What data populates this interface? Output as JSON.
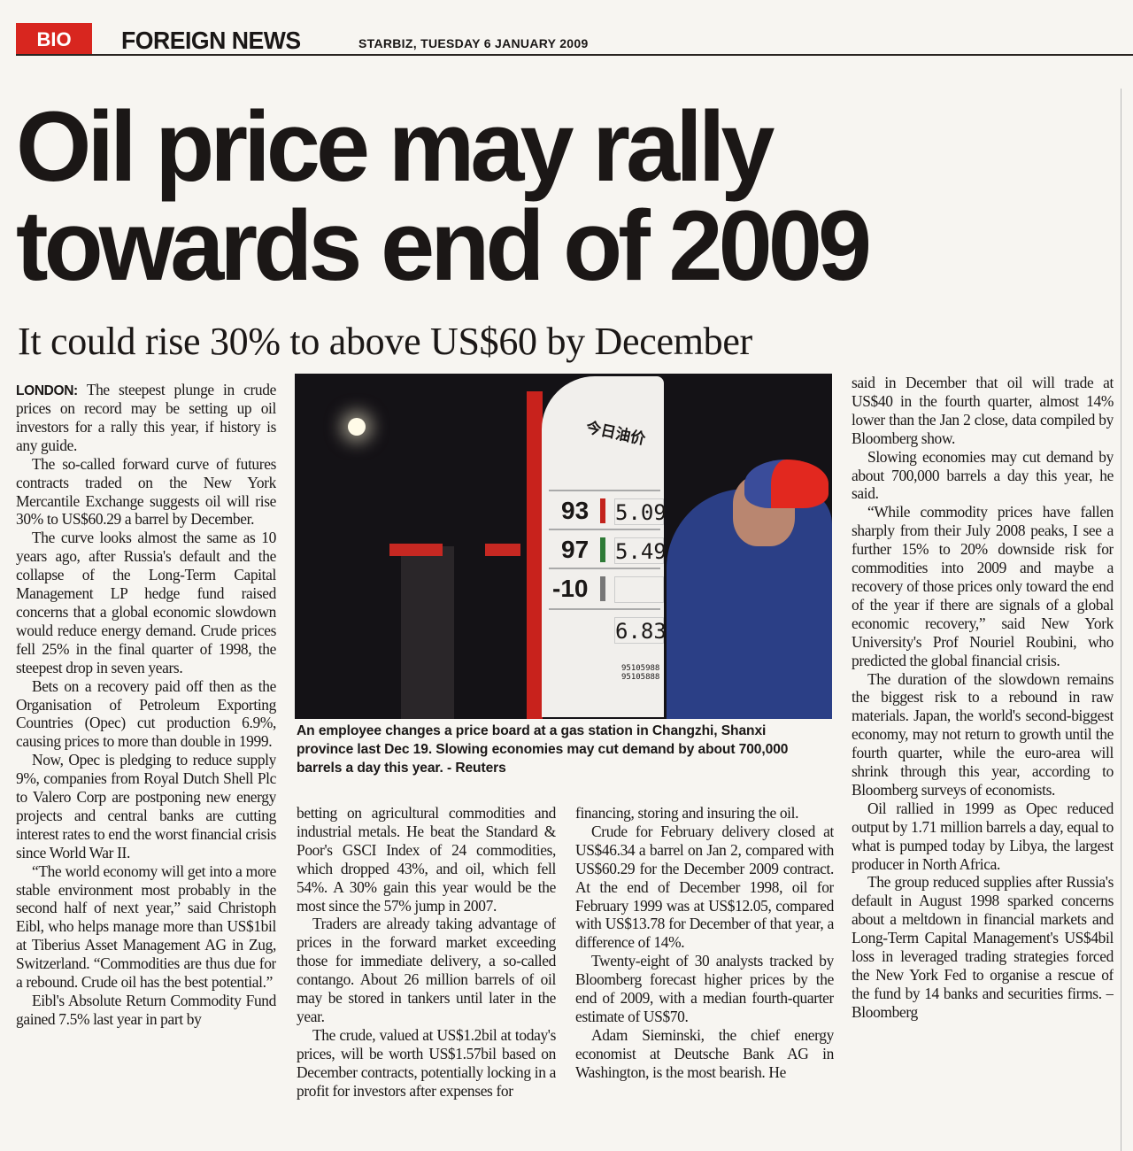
{
  "masthead": {
    "badge": "BIO",
    "section": "FOREIGN NEWS",
    "dateline": "STARBIZ, TUESDAY 6 JANUARY 2009"
  },
  "article": {
    "headline_line1": "Oil price may rally",
    "headline_line2": "towards end of 2009",
    "subhead": "It could rise 30% to above US$60 by December",
    "dateline": "LONDON:",
    "col1": [
      "The steepest plunge in crude prices on record may be setting up oil investors for a rally this year, if history is any guide.",
      "The so-called forward curve of futures contracts traded on the New York Mercantile Exchange suggests oil will rise 30% to US$60.29 a barrel by December.",
      "The curve looks almost the same as 10 years ago, after Russia's default and the collapse of the Long-Term Capital Management LP hedge fund raised concerns that a global economic slowdown would reduce energy demand. Crude prices fell 25% in the final quarter of 1998, the steepest drop in seven years.",
      "Bets on a recovery paid off then as the Organisation of Petroleum Exporting Countries (Opec) cut production 6.9%, causing prices to more than double in 1999.",
      "Now, Opec is pledging to reduce supply 9%, companies from Royal Dutch Shell Plc to Valero Corp are postponing new energy projects and central banks are cutting interest rates to end the worst financial crisis since World War II.",
      "“The world economy will get into a more stable environment most probably in the second half of next year,” said Christoph Eibl, who helps manage more than US$1bil at Tiberius Asset Management AG in Zug, Switzerland. “Commodities are thus due for a rebound. Crude oil has the best potential.”",
      "Eibl's Absolute Return Commodity Fund gained 7.5% last year in part by"
    ],
    "col2": [
      "betting on agricultural commodities and industrial metals. He beat the Standard & Poor's GSCI Index of 24 commodities, which dropped 43%, and oil, which fell 54%. A 30% gain this year would be the most since the 57% jump in 2007.",
      "Traders are already taking advantage of prices in the forward market exceeding those for immediate delivery, a so-called contango. About 26 million barrels of oil may be stored in tankers until later in the year.",
      "The crude, valued at US$1.2bil at today's prices, will be worth US$1.57bil based on December contracts, potentially locking in a profit for investors after expenses for"
    ],
    "col3": [
      "financing, storing and insuring the oil.",
      "Crude for February delivery closed at US$46.34 a barrel on Jan 2, compared with US$60.29 for the December 2009 contract. At the end of December 1998, oil for February 1999 was at US$12.05, compared with US$13.78 for December of that year, a difference of 14%.",
      "Twenty-eight of 30 analysts tracked by Bloomberg forecast higher prices by the end of 2009, with a median fourth-quarter estimate of US$70.",
      "Adam Sieminski, the chief energy economist at Deutsche Bank AG in Washington, is the most bearish. He"
    ],
    "col4": [
      "said in December that oil will trade at US$40 in the fourth quarter, almost 14% lower than the Jan 2 close, data compiled by Bloomberg show.",
      "Slowing economies may cut demand by about 700,000 barrels a day this year, he said.",
      "“While commodity prices have fallen sharply from their July 2008 peaks, I see a further 15% to 20% downside risk for commodities into 2009 and maybe a recovery of those prices only toward the end of the year if there are signals of a global economic recovery,” said New York University's Prof Nouriel Roubini, who predicted the global financial crisis.",
      "The duration of the slowdown remains the biggest risk to a rebound in raw materials. Japan, the world's second-biggest economy, may not return to growth until the fourth quarter, while the euro-area will shrink through this year, according to Bloomberg surveys of economists.",
      "Oil rallied in 1999 as Opec reduced output by 1.71 million barrels a day, equal to what is pumped today by Libya, the largest producer in North Africa.",
      "The group reduced supplies after Russia's default in August 1998 sparked concerns about a meltdown in financial markets and Long-Term Capital Management's US$4bil loss in leveraged trading strategies forced the New York Fed to organise a rescue of the fund by 14 banks and securities firms. – Bloomberg"
    ]
  },
  "photo": {
    "board_title": "今日油价",
    "rows": [
      {
        "grade": "93",
        "price": "5.09",
        "color": "#c3231c"
      },
      {
        "grade": "97",
        "price": "5.49",
        "color": "#2e7a36"
      },
      {
        "grade": "-10",
        "price": "",
        "color": "#777777"
      },
      {
        "grade": "",
        "price": "6.83",
        "color": ""
      }
    ],
    "phone_1": "95105988",
    "phone_2": "95105888",
    "caption": "An employee changes a price board at a gas station in Changzhi, Shanxi province last Dec 19. Slowing economies may cut demand by about 700,000 barrels a day this year. - Reuters"
  }
}
